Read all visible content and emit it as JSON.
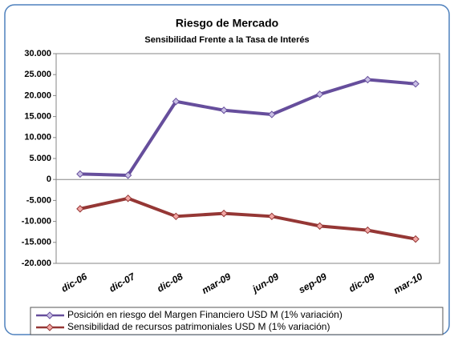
{
  "chart_data": {
    "type": "line",
    "title": "Riesgo de Mercado",
    "subtitle": "Sensibilidad Frente a la Tasa de Interés",
    "categories": [
      "dic-06",
      "dic-07",
      "dic-08",
      "mar-09",
      "jun-09",
      "sep-09",
      "dic-09",
      "mar-10"
    ],
    "series": [
      {
        "name": "Posición en riesgo del Margen Financiero  USD M (1% variación)",
        "color": "#664e9c",
        "marker_color": "#c9bfe4",
        "values": [
          1300,
          1000,
          18600,
          16500,
          15500,
          20300,
          23800,
          22800
        ]
      },
      {
        "name": "Sensibilidad de recursos patrimoniales USD M (1% variación)",
        "color": "#953735",
        "marker_color": "#f2a7a5",
        "values": [
          -7000,
          -4500,
          -8800,
          -8100,
          -8800,
          -11100,
          -12100,
          -14200
        ]
      }
    ],
    "ylim": [
      -20000,
      30000
    ],
    "yticks": [
      {
        "value": 30000,
        "label": "30.000"
      },
      {
        "value": 25000,
        "label": "25.000"
      },
      {
        "value": 20000,
        "label": "20.000"
      },
      {
        "value": 15000,
        "label": "15.000"
      },
      {
        "value": 10000,
        "label": "10.000"
      },
      {
        "value": 5000,
        "label": "5.000"
      },
      0,
      {
        "value": -5000,
        "label": "-5.000"
      },
      {
        "value": -10000,
        "label": "-10.000"
      },
      {
        "value": -15000,
        "label": "-15.000"
      },
      {
        "value": -20000,
        "label": "-20.000"
      }
    ],
    "grid": false,
    "legend": "bottom"
  }
}
